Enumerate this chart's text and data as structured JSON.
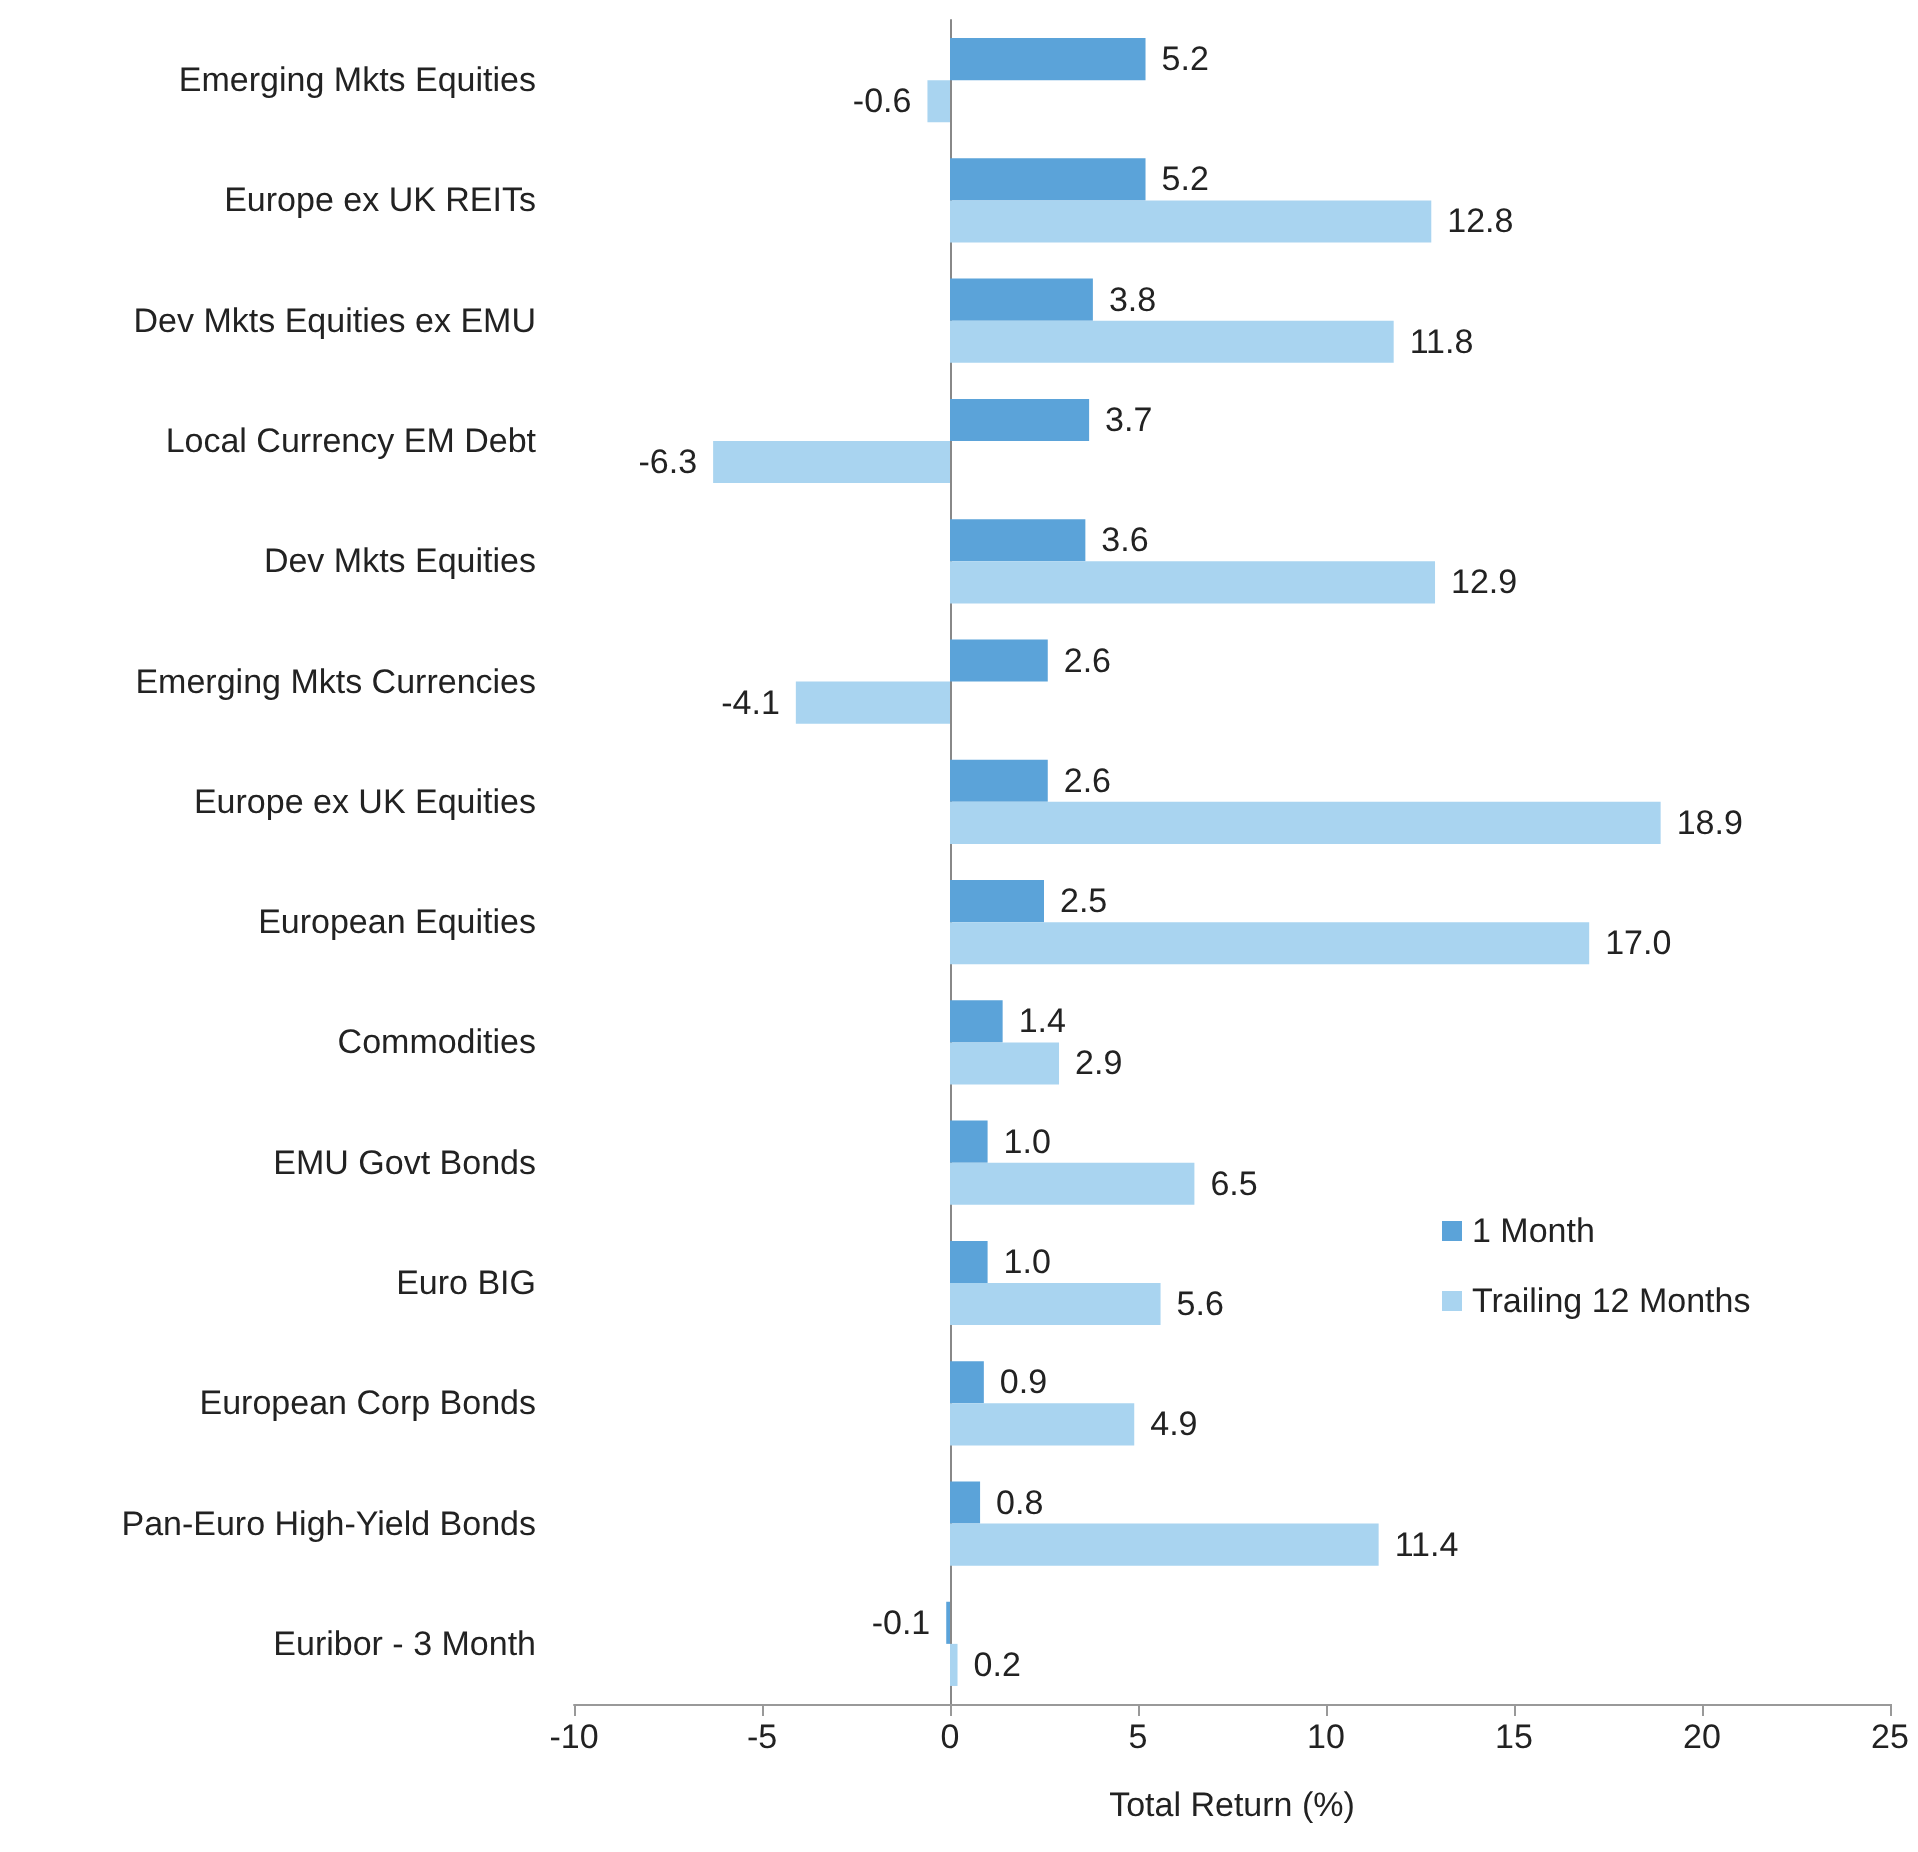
{
  "chart_data": {
    "type": "bar",
    "orientation": "horizontal",
    "xlabel": "Total Return (%)",
    "categories": [
      "Emerging Mkts Equities",
      "Europe ex UK REITs",
      "Dev Mkts Equities ex EMU",
      "Local Currency EM Debt",
      "Dev Mkts Equities",
      "Emerging Mkts Currencies",
      "Europe ex UK Equities",
      "European Equities",
      "Commodities",
      "EMU Govt Bonds",
      "Euro BIG",
      "European Corp Bonds",
      "Pan-Euro High-Yield Bonds",
      "Euribor - 3 Month"
    ],
    "series": [
      {
        "name": "1 Month",
        "color": "#5ba3d9",
        "values": [
          5.2,
          5.2,
          3.8,
          3.7,
          3.6,
          2.6,
          2.6,
          2.5,
          1.4,
          1.0,
          1.0,
          0.9,
          0.8,
          -0.1
        ],
        "value_labels": [
          "5.2",
          "5.2",
          "3.8",
          "3.7",
          "3.6",
          "2.6",
          "2.6",
          "2.5",
          "1.4",
          "1.0",
          "1.0",
          "0.9",
          "0.8",
          "-0.1"
        ]
      },
      {
        "name": "Trailing 12 Months",
        "color": "#a9d4f0",
        "values": [
          -0.6,
          12.8,
          11.8,
          -6.3,
          12.9,
          -4.1,
          18.9,
          17.0,
          2.9,
          6.5,
          5.6,
          4.9,
          11.4,
          0.2
        ],
        "value_labels": [
          "-0.6",
          "12.8",
          "11.8",
          "-6.3",
          "12.9",
          "-4.1",
          "18.9",
          "17.0",
          "2.9",
          "6.5",
          "5.6",
          "4.9",
          "11.4",
          "0.2"
        ]
      }
    ],
    "xlim": [
      -10,
      25
    ],
    "xticks": [
      -10,
      -5,
      0,
      5,
      10,
      15,
      20,
      25
    ],
    "legend": "right"
  }
}
